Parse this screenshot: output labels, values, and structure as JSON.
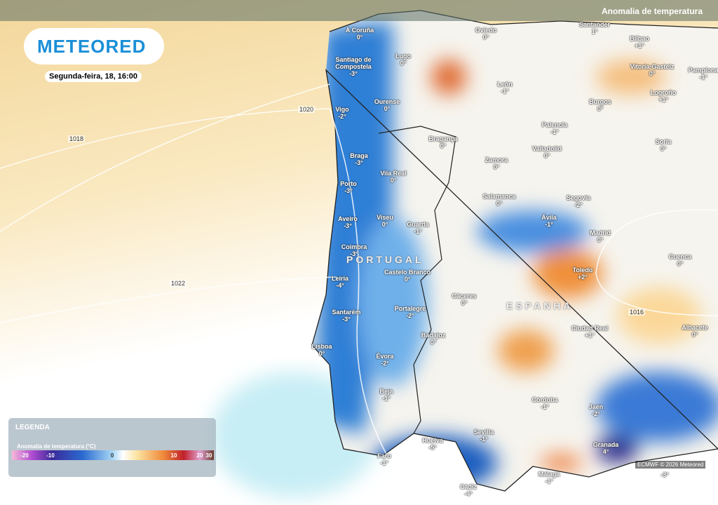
{
  "header": {
    "title": "Anomalia de temperatura"
  },
  "logo": {
    "text": "METEORED"
  },
  "date": "Segunda-feira, 18, 16:00",
  "isobars": [
    1020,
    1018,
    1022,
    1016
  ],
  "countries": [
    "PORTUGAL",
    "ESPANHA"
  ],
  "cities": [
    {
      "name": "A Coruña",
      "value": "0°"
    },
    {
      "name": "Santiago de Compostela",
      "value": "-3°"
    },
    {
      "name": "Vigo",
      "value": "-2°"
    },
    {
      "name": "Lugo",
      "value": "0°"
    },
    {
      "name": "Oviedo",
      "value": "0°"
    },
    {
      "name": "Santander",
      "value": "1°"
    },
    {
      "name": "Bilbao",
      "value": "+1°"
    },
    {
      "name": "Vitoria-Gasteiz",
      "value": "0°"
    },
    {
      "name": "Pamplona",
      "value": "-1°"
    },
    {
      "name": "León",
      "value": "-1°"
    },
    {
      "name": "Ourense",
      "value": "0°"
    },
    {
      "name": "Burgos",
      "value": "0°"
    },
    {
      "name": "Logroño",
      "value": "+1°"
    },
    {
      "name": "Palencia",
      "value": "-1°"
    },
    {
      "name": "Soria",
      "value": "0°"
    },
    {
      "name": "Bragança",
      "value": "0°"
    },
    {
      "name": "Valladolid",
      "value": "0°"
    },
    {
      "name": "Zamora",
      "value": "0°"
    },
    {
      "name": "Braga",
      "value": "-3°"
    },
    {
      "name": "Vila Real",
      "value": "0°"
    },
    {
      "name": "Porto",
      "value": "-3°"
    },
    {
      "name": "Salamanca",
      "value": "0°"
    },
    {
      "name": "Segovia",
      "value": "-2°"
    },
    {
      "name": "Aveiro",
      "value": "-3°"
    },
    {
      "name": "Viseu",
      "value": "0°"
    },
    {
      "name": "Guarda",
      "value": "-1°"
    },
    {
      "name": "Ávila",
      "value": "-1°"
    },
    {
      "name": "Madrid",
      "value": "0°"
    },
    {
      "name": "Coimbra",
      "value": "-3°"
    },
    {
      "name": "Castelo Branco",
      "value": "0°"
    },
    {
      "name": "Toledo",
      "value": "+2°"
    },
    {
      "name": "Cuenca",
      "value": "0°"
    },
    {
      "name": "Leiria",
      "value": "-4°"
    },
    {
      "name": "Cáceres",
      "value": "0°"
    },
    {
      "name": "Santarém",
      "value": "-3°"
    },
    {
      "name": "Portalegre",
      "value": "-2°"
    },
    {
      "name": "Ciudad Real",
      "value": "+1°"
    },
    {
      "name": "Albacete",
      "value": "0°"
    },
    {
      "name": "Badajoz",
      "value": "0°"
    },
    {
      "name": "Lisboa",
      "value": "0°"
    },
    {
      "name": "Évora",
      "value": "-2°"
    },
    {
      "name": "Beja",
      "value": "-1°"
    },
    {
      "name": "Córdoba",
      "value": "-1°"
    },
    {
      "name": "Jaén",
      "value": "-2°"
    },
    {
      "name": "Sevilla",
      "value": "-1°"
    },
    {
      "name": "Huelva",
      "value": "-5°"
    },
    {
      "name": "Faro",
      "value": "-1°"
    },
    {
      "name": "Granada",
      "value": "4°"
    },
    {
      "name": "Cádiz",
      "value": "-4°"
    },
    {
      "name": "Málaga",
      "value": "-1°"
    },
    {
      "value": "-3°"
    }
  ],
  "legend": {
    "title": "LEGENDA",
    "subtitle": "Anomalia de temperatura (°C)",
    "ticks": [
      -20,
      -10,
      0,
      10,
      20,
      30
    ]
  },
  "credit": "ECMWF © 2026 Meteored"
}
